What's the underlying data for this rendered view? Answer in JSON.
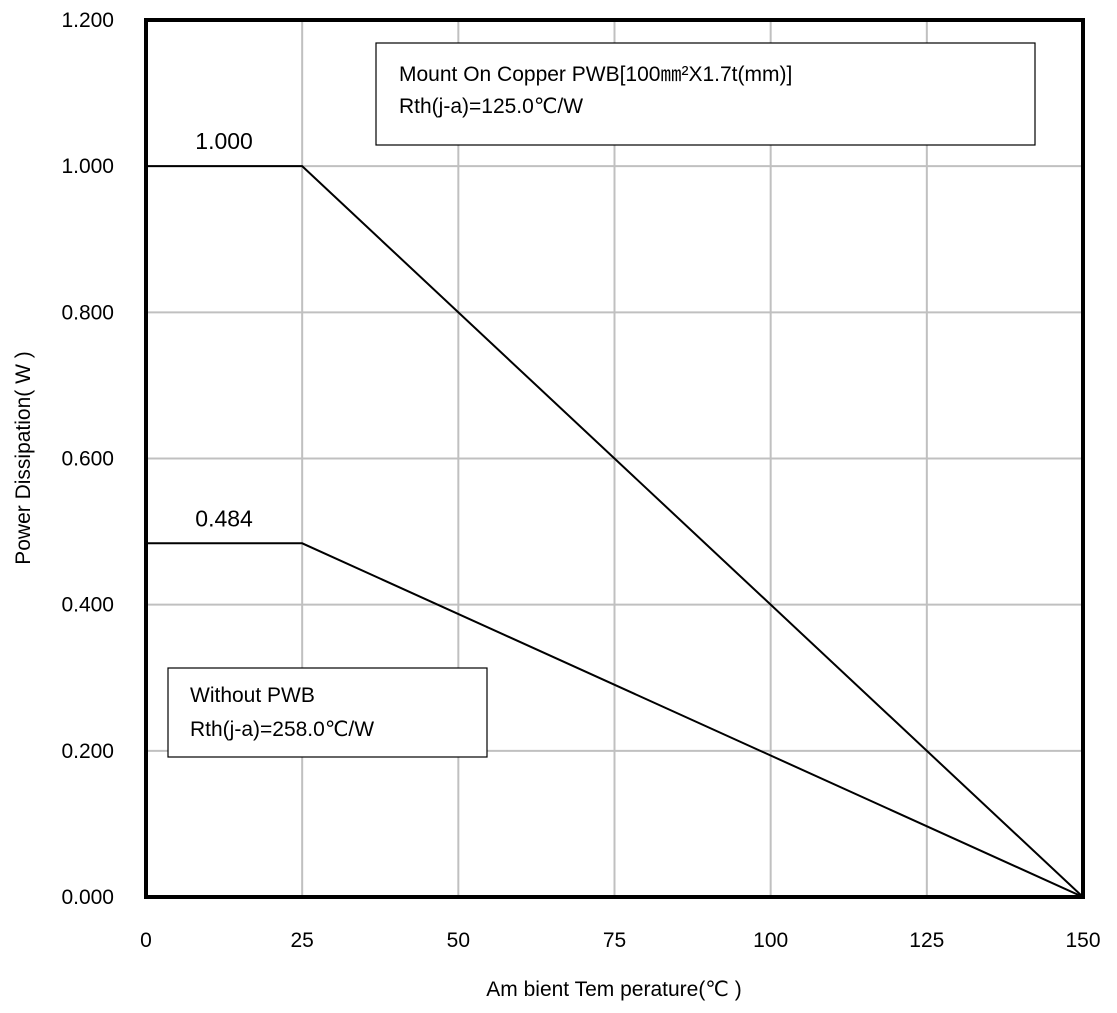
{
  "chart_data": {
    "type": "line",
    "title": "",
    "xlabel": "Am bient Tem perature(℃ )",
    "ylabel": "Power Dissipation( W )",
    "xlim": [
      0,
      150
    ],
    "ylim": [
      0,
      1.2
    ],
    "grid": true,
    "x_ticks": [
      0,
      25,
      50,
      75,
      100,
      125,
      150
    ],
    "x_tick_labels": [
      "0",
      "25",
      "50",
      "75",
      "100",
      "125",
      "150"
    ],
    "y_ticks": [
      0,
      0.2,
      0.4,
      0.6,
      0.8,
      1.0,
      1.2
    ],
    "y_tick_labels": [
      "0.000",
      "0.200",
      "0.400",
      "0.600",
      "0.800",
      "1.000",
      "1.200"
    ],
    "series": [
      {
        "x": [
          0,
          25,
          150
        ],
        "y": [
          1.0,
          1.0,
          0
        ],
        "label": "1.000"
      },
      {
        "x": [
          0,
          25,
          150
        ],
        "y": [
          0.484,
          0.484,
          0
        ],
        "label": "0.484"
      }
    ],
    "annotations": [
      {
        "lines": [
          "Mount On Copper PWB[100㎜²X1.7t(mm)]",
          "Rth(j-a)=125.0℃/W"
        ]
      },
      {
        "lines": [
          "Without PWB",
          "Rth(j-a)=258.0℃/W"
        ]
      }
    ]
  }
}
